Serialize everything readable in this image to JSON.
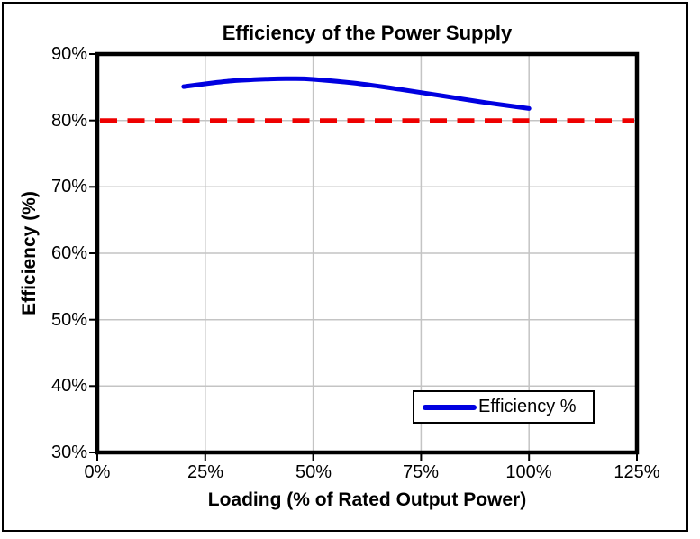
{
  "chart_data": {
    "type": "line",
    "title": "Efficiency of the Power Supply",
    "xlabel": "Loading (% of Rated Output Power)",
    "ylabel": "Efficiency (%)",
    "xlim": [
      0,
      125
    ],
    "ylim": [
      30,
      90
    ],
    "grid": true,
    "x_ticks": [
      {
        "value": 0,
        "label": "0%"
      },
      {
        "value": 25,
        "label": "25%"
      },
      {
        "value": 50,
        "label": "50%"
      },
      {
        "value": 75,
        "label": "75%"
      },
      {
        "value": 100,
        "label": "100%"
      },
      {
        "value": 125,
        "label": "125%"
      }
    ],
    "y_ticks": [
      {
        "value": 30,
        "label": "30%"
      },
      {
        "value": 40,
        "label": "40%"
      },
      {
        "value": 50,
        "label": "50%"
      },
      {
        "value": 60,
        "label": "60%"
      },
      {
        "value": 70,
        "label": "70%"
      },
      {
        "value": 80,
        "label": "80%"
      },
      {
        "value": 90,
        "label": "90%"
      }
    ],
    "series": [
      {
        "name": "Efficiency %",
        "color": "#0000E0",
        "style": "solid",
        "smooth": true,
        "line_width": 5,
        "x": [
          20,
          30,
          40,
          45,
          50,
          60,
          70,
          80,
          90,
          100
        ],
        "values": [
          85.1,
          85.9,
          86.25,
          86.3,
          86.2,
          85.6,
          84.7,
          83.7,
          82.7,
          81.8
        ]
      }
    ],
    "reference_line": {
      "y": 80,
      "color": "#EE0000",
      "style": "dashed",
      "line_width": 5
    },
    "legend": {
      "position": "inside-bottom-right",
      "entries": [
        {
          "label": "Efficiency %",
          "color": "#0000E0"
        }
      ]
    },
    "colors": {
      "gridline": "#C4C4C4",
      "axis_border": "#000000",
      "background": "#FFFFFF",
      "text": "#000000"
    }
  }
}
